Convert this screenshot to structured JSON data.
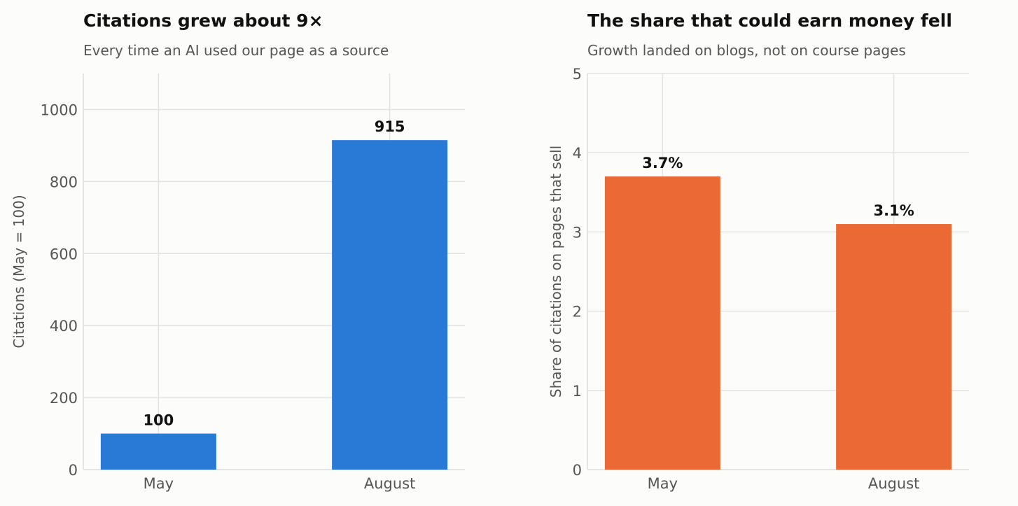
{
  "chart_data": [
    {
      "type": "bar",
      "title": "Citations grew about 9×",
      "subtitle": "Every time an AI used our page as a source",
      "xlabel": "",
      "ylabel": "Citations (May = 100)",
      "categories": [
        "May",
        "August"
      ],
      "values": [
        100,
        915
      ],
      "data_labels": [
        "100",
        "915"
      ],
      "ylim": [
        0,
        1100
      ],
      "yticks": [
        0,
        200,
        400,
        600,
        800,
        1000
      ],
      "ytick_labels": [
        "0",
        "200",
        "400",
        "600",
        "800",
        "1000"
      ],
      "grid": true,
      "legend": "none",
      "bar_color": "#2979d6"
    },
    {
      "type": "bar",
      "title": "The share that could earn money fell",
      "subtitle": "Growth landed on blogs, not on course pages",
      "xlabel": "",
      "ylabel": "Share of citations on pages that sell",
      "categories": [
        "May",
        "August"
      ],
      "values": [
        3.7,
        3.1
      ],
      "data_labels": [
        "3.7%",
        "3.1%"
      ],
      "ylim": [
        0,
        5
      ],
      "yticks": [
        0,
        1,
        2,
        3,
        4,
        5
      ],
      "ytick_labels": [
        "0",
        "1",
        "2",
        "3",
        "4",
        "5"
      ],
      "grid": true,
      "legend": "none",
      "bar_color": "#eb6935"
    }
  ],
  "colors": {
    "background": "#fcfcfb",
    "grid": "#e3e3e3",
    "axis": "#dddddd",
    "title": "#111111",
    "subtitle": "#555555",
    "tick": "#555555",
    "data_label": "#111111"
  }
}
